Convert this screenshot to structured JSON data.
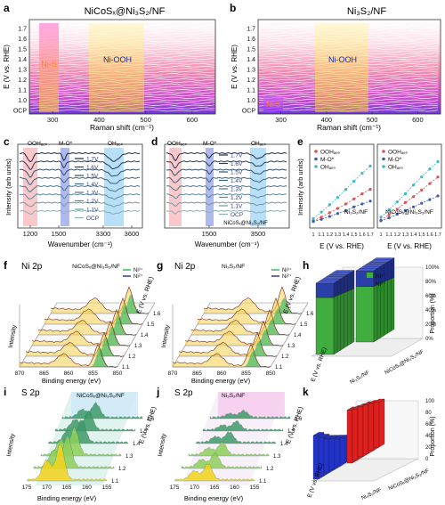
{
  "figure": {
    "panels": {
      "a": {
        "letter": "a",
        "title": "NiCoSₓ@Ni₃S₂/NF",
        "ylabel": "E (V vs. RHE)",
        "xlabel": "Raman shift (cm⁻¹)",
        "yticks": [
          "OCP",
          "1.0",
          "1.1",
          "1.2",
          "1.3",
          "1.4",
          "1.5",
          "1.6",
          "1.7"
        ],
        "xticks": [
          "300",
          "400",
          "500",
          "600"
        ],
        "labels": [
          "Ni-S",
          "Ni-OOH"
        ]
      },
      "b": {
        "letter": "b",
        "title": "Ni₃S₂/NF",
        "ylabel": "E (V vs. RHE)",
        "xlabel": "Raman shift (cm⁻¹)",
        "yticks": [
          "OCP",
          "1.0",
          "1.1",
          "1.2",
          "1.3",
          "1.4",
          "1.5",
          "1.6",
          "1.7"
        ],
        "xticks": [
          "300",
          "400",
          "500",
          "600"
        ],
        "labels": [
          "Ni-OOH",
          "Ni-S"
        ]
      },
      "c": {
        "letter": "c",
        "ylabel": "Intensity (arb units)",
        "xlabel": "Wavenumber (cm⁻¹)",
        "xticks": [
          "1200",
          "1500",
          "3300",
          "3600"
        ],
        "bands": [
          "OOHₐₑₛ",
          "M-O*",
          "OHₐₑₛ"
        ],
        "legend": [
          "1.7V",
          "1.6V",
          "1.5V",
          "1.4V",
          "1.3V",
          "1.2V",
          "1.1V",
          "OCP"
        ]
      },
      "d": {
        "letter": "d",
        "ylabel": "",
        "xlabel": "Wavenumber (cm⁻¹)",
        "xticks": [
          "1500",
          "3500"
        ],
        "bands": [
          "OOHₐₑₛ",
          "M-O*",
          "OHₐₑₛ"
        ],
        "legend": [
          "1.7V",
          "1.6V",
          "1.5V",
          "1.4V",
          "1.3V",
          "1.2V",
          "1.1V",
          "OCP"
        ],
        "sample": "NiCoSₓ@Ni₃S₂/NF"
      },
      "e": {
        "letter": "e",
        "ylabel": "Intensity (arb units)",
        "xlabel": "E (V vs. RHE)",
        "xticks": [
          "1",
          "1.1",
          "1.2",
          "1.3",
          "1.4",
          "1.5",
          "1.6",
          "1.7"
        ],
        "legend": [
          "OOHₐₑₛ",
          "M-O*",
          "OHₐₑₛ"
        ],
        "left_sample": "Ni₃S₂/NF",
        "right_sample": "NiCoSₓ@Ni₃S₂/NF"
      },
      "f": {
        "letter": "f",
        "element": "Ni 2p",
        "sample": "NiCoSₓ@Ni₃S₂/NF",
        "legend": [
          "Ni³⁺",
          "Ni²⁺"
        ],
        "xlabel": "Binding energy (eV)",
        "ylabel": "Intensity",
        "zlabel": "E (V vs. RHE)",
        "xticks": [
          "870",
          "865",
          "860",
          "855",
          "850"
        ],
        "zticks": [
          "1.1",
          "1.2",
          "1.3",
          "1.4",
          "1.5",
          "1.6"
        ]
      },
      "g": {
        "letter": "g",
        "element": "Ni 2p",
        "sample": "Ni₃S₂/NF",
        "legend": [
          "Ni³⁺",
          "Ni²⁺"
        ],
        "xlabel": "Binding energy (eV)",
        "ylabel": "Intensity",
        "zlabel": "E (V vs. RHE)",
        "xticks": [
          "870",
          "865",
          "860",
          "855",
          "850"
        ],
        "zticks": [
          "1.1",
          "1.2",
          "1.3",
          "1.4",
          "1.5",
          "1.6"
        ]
      },
      "h": {
        "letter": "h",
        "legend": [
          "Ni³⁺",
          "Ni²⁺"
        ],
        "ylabel": "Proportion (%)",
        "elabel": "E (V vs. RHE)",
        "yticks": [
          "0%",
          "20%",
          "40%",
          "60%",
          "80%",
          "100%"
        ],
        "samples": [
          "Ni₃S₂/NF",
          "NiCoSₓ@Ni₃S₂/NF"
        ]
      },
      "i": {
        "letter": "i",
        "element": "S 2p",
        "sample": "NiCoSₓ@Ni₃S₂/NF",
        "xlabel": "Binding energy (eV)",
        "ylabel": "Intensity",
        "zlabel": "E (V vs. RHE)",
        "xticks": [
          "175",
          "170",
          "165",
          "160",
          "155"
        ],
        "zticks": [
          "1.1",
          "1.2",
          "1.3",
          "1.4",
          "1.5",
          "1.6"
        ]
      },
      "j": {
        "letter": "j",
        "element": "S 2p",
        "sample": "Ni₃S₂/NF",
        "xlabel": "Binding energy (eV)",
        "ylabel": "Intensity",
        "zlabel": "E (V vs. RHE)",
        "xticks": [
          "175",
          "170",
          "165",
          "160",
          "155"
        ],
        "zticks": [
          "1.1",
          "1.2",
          "1.3",
          "1.4",
          "1.5",
          "1.6"
        ]
      },
      "k": {
        "letter": "k",
        "ylabel": "Proportion (%)",
        "elabel": "E (V vs. RHE)",
        "yticks": [
          "0",
          "20",
          "40",
          "60",
          "80",
          "100"
        ],
        "samples": [
          "Ni₃S₂/NF",
          "NiCoSₓ@Ni₃S₂/NF"
        ]
      }
    }
  },
  "chart_data": [
    {
      "type": "line",
      "id": "e-left",
      "title": "Ni₃S₂/NF",
      "xlabel": "E (V vs. RHE)",
      "ylabel": "Intensity (arb units)",
      "x": [
        1.0,
        1.1,
        1.2,
        1.3,
        1.4,
        1.5,
        1.6,
        1.7
      ],
      "series": [
        {
          "name": "OOHₐₑₛ",
          "values": [
            0.05,
            0.1,
            0.16,
            0.22,
            0.28,
            0.35,
            0.42,
            0.48
          ]
        },
        {
          "name": "M-O*",
          "values": [
            0.04,
            0.07,
            0.11,
            0.15,
            0.19,
            0.24,
            0.28,
            0.32
          ]
        },
        {
          "name": "OHₐₑₛ",
          "values": [
            0.08,
            0.17,
            0.27,
            0.37,
            0.48,
            0.59,
            0.7,
            0.8
          ]
        }
      ],
      "colors": [
        "#d9534f",
        "#3b5bb5",
        "#3fb8c4"
      ]
    },
    {
      "type": "line",
      "id": "e-right",
      "title": "NiCoSₓ@Ni₃S₂/NF",
      "xlabel": "E (V vs. RHE)",
      "ylabel": "",
      "x": [
        1.0,
        1.1,
        1.2,
        1.3,
        1.4,
        1.5,
        1.6,
        1.7
      ],
      "series": [
        {
          "name": "OOHₐₑₛ",
          "values": [
            0.06,
            0.13,
            0.21,
            0.3,
            0.38,
            0.47,
            0.56,
            0.65
          ]
        },
        {
          "name": "M-O*",
          "values": [
            0.05,
            0.09,
            0.14,
            0.19,
            0.24,
            0.29,
            0.34,
            0.39
          ]
        },
        {
          "name": "OHₐₑₛ",
          "values": [
            0.1,
            0.2,
            0.31,
            0.42,
            0.54,
            0.65,
            0.76,
            0.86
          ]
        }
      ],
      "colors": [
        "#d9534f",
        "#3b5bb5",
        "#3fb8c4"
      ]
    },
    {
      "type": "bar",
      "id": "h",
      "ylabel": "Proportion (%)",
      "categories": [
        "1.1",
        "1.2",
        "1.3",
        "1.4",
        "1.5",
        "1.6"
      ],
      "series": [
        {
          "name": "Ni³⁺ (Ni₃S₂/NF)",
          "values": [
            20,
            21,
            22,
            23,
            24,
            25
          ]
        },
        {
          "name": "Ni³⁺ (NiCoSₓ@Ni₃S₂/NF)",
          "values": [
            22,
            23,
            24,
            25,
            26,
            27
          ]
        }
      ],
      "colors": [
        "#2b3fa8",
        "#3fae3f"
      ]
    },
    {
      "type": "bar",
      "id": "k",
      "ylabel": "Proportion (%)",
      "categories": [
        "1.1",
        "1.2",
        "1.3",
        "1.4",
        "1.5",
        "1.6"
      ],
      "series": [
        {
          "name": "Ni₃S₂/NF",
          "values": [
            70,
            62,
            55,
            50,
            45,
            40
          ]
        },
        {
          "name": "NiCoSₓ@Ni₃S₂/NF",
          "values": [
            85,
            82,
            80,
            78,
            75,
            72
          ]
        }
      ],
      "colors": [
        "#2233cc",
        "#e01f1f"
      ]
    }
  ]
}
